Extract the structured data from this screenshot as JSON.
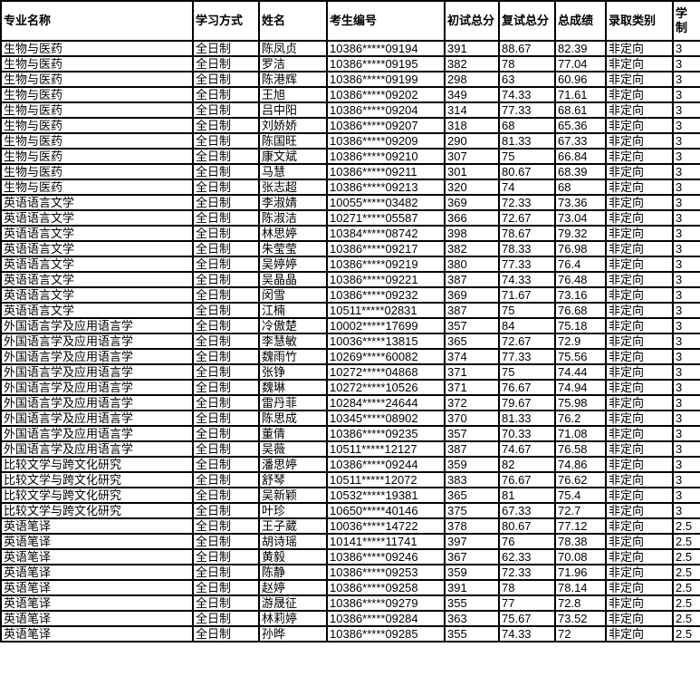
{
  "headers": [
    "专业名称",
    "学习方式",
    "姓名",
    "考生编号",
    "初试总分",
    "复试总分",
    "总成绩",
    "录取类别",
    "学制"
  ],
  "rows": [
    [
      "生物与医药",
      "全日制",
      "陈凤贞",
      "10386*****09194",
      "391",
      "88.67",
      "82.39",
      "非定向",
      "3"
    ],
    [
      "生物与医药",
      "全日制",
      "罗洁",
      "10386*****09195",
      "382",
      "78",
      "77.04",
      "非定向",
      "3"
    ],
    [
      "生物与医药",
      "全日制",
      "陈港辉",
      "10386*****09199",
      "298",
      "63",
      "60.96",
      "非定向",
      "3"
    ],
    [
      "生物与医药",
      "全日制",
      "王旭",
      "10386*****09202",
      "349",
      "74.33",
      "71.61",
      "非定向",
      "3"
    ],
    [
      "生物与医药",
      "全日制",
      "吕中阳",
      "10386*****09204",
      "314",
      "77.33",
      "68.61",
      "非定向",
      "3"
    ],
    [
      "生物与医药",
      "全日制",
      "刘娇娇",
      "10386*****09207",
      "318",
      "68",
      "65.36",
      "非定向",
      "3"
    ],
    [
      "生物与医药",
      "全日制",
      "陈国旺",
      "10386*****09209",
      "290",
      "81.33",
      "67.33",
      "非定向",
      "3"
    ],
    [
      "生物与医药",
      "全日制",
      "康文斌",
      "10386*****09210",
      "307",
      "75",
      "66.84",
      "非定向",
      "3"
    ],
    [
      "生物与医药",
      "全日制",
      "马慧",
      "10386*****09211",
      "301",
      "80.67",
      "68.39",
      "非定向",
      "3"
    ],
    [
      "生物与医药",
      "全日制",
      "张志超",
      "10386*****09213",
      "320",
      "74",
      "68",
      "非定向",
      "3"
    ],
    [
      "英语语言文学",
      "全日制",
      "李淑婧",
      "10055*****03482",
      "369",
      "72.33",
      "73.36",
      "非定向",
      "3"
    ],
    [
      "英语语言文学",
      "全日制",
      "陈淑洁",
      "10271*****05587",
      "366",
      "72.67",
      "73.04",
      "非定向",
      "3"
    ],
    [
      "英语语言文学",
      "全日制",
      "林思婷",
      "10384*****08742",
      "398",
      "78.67",
      "79.32",
      "非定向",
      "3"
    ],
    [
      "英语语言文学",
      "全日制",
      "朱莹莹",
      "10386*****09217",
      "382",
      "78.33",
      "76.98",
      "非定向",
      "3"
    ],
    [
      "英语语言文学",
      "全日制",
      "吴婷婷",
      "10386*****09219",
      "380",
      "77.33",
      "76.4",
      "非定向",
      "3"
    ],
    [
      "英语语言文学",
      "全日制",
      "吴晶晶",
      "10386*****09221",
      "387",
      "74.33",
      "76.48",
      "非定向",
      "3"
    ],
    [
      "英语语言文学",
      "全日制",
      "闵雪",
      "10386*****09232",
      "369",
      "71.67",
      "73.16",
      "非定向",
      "3"
    ],
    [
      "英语语言文学",
      "全日制",
      "江楠",
      "10511*****02831",
      "387",
      "75",
      "76.68",
      "非定向",
      "3"
    ],
    [
      "外国语言学及应用语言学",
      "全日制",
      "冷傲楚",
      "10002*****17699",
      "357",
      "84",
      "75.18",
      "非定向",
      "3"
    ],
    [
      "外国语言学及应用语言学",
      "全日制",
      "李慧敏",
      "10036*****13815",
      "365",
      "72.67",
      "72.9",
      "非定向",
      "3"
    ],
    [
      "外国语言学及应用语言学",
      "全日制",
      "魏雨竹",
      "10269*****60082",
      "374",
      "77.33",
      "75.56",
      "非定向",
      "3"
    ],
    [
      "外国语言学及应用语言学",
      "全日制",
      "张铮",
      "10272*****04868",
      "371",
      "75",
      "74.44",
      "非定向",
      "3"
    ],
    [
      "外国语言学及应用语言学",
      "全日制",
      "魏琳",
      "10272*****10526",
      "371",
      "76.67",
      "74.94",
      "非定向",
      "3"
    ],
    [
      "外国语言学及应用语言学",
      "全日制",
      "雷丹菲",
      "10284*****24644",
      "372",
      "79.67",
      "75.98",
      "非定向",
      "3"
    ],
    [
      "外国语言学及应用语言学",
      "全日制",
      "陈思成",
      "10345*****08902",
      "370",
      "81.33",
      "76.2",
      "非定向",
      "3"
    ],
    [
      "外国语言学及应用语言学",
      "全日制",
      "董倩",
      "10386*****09235",
      "357",
      "70.33",
      "71.08",
      "非定向",
      "3"
    ],
    [
      "外国语言学及应用语言学",
      "全日制",
      "吴薇",
      "10511*****12127",
      "387",
      "74.67",
      "76.58",
      "非定向",
      "3"
    ],
    [
      "比较文学与跨文化研究",
      "全日制",
      "潘思婷",
      "10386*****09244",
      "359",
      "82",
      "74.86",
      "非定向",
      "3"
    ],
    [
      "比较文学与跨文化研究",
      "全日制",
      "舒琴",
      "10511*****12072",
      "383",
      "76.67",
      "76.62",
      "非定向",
      "3"
    ],
    [
      "比较文学与跨文化研究",
      "全日制",
      "吴新颖",
      "10532*****19381",
      "365",
      "81",
      "75.4",
      "非定向",
      "3"
    ],
    [
      "比较文学与跨文化研究",
      "全日制",
      "叶珍",
      "10650*****40146",
      "375",
      "67.33",
      "72.7",
      "非定向",
      "3"
    ],
    [
      "英语笔译",
      "全日制",
      "王子葳",
      "10036*****14722",
      "378",
      "80.67",
      "77.12",
      "非定向",
      "2.5"
    ],
    [
      "英语笔译",
      "全日制",
      "胡诗瑶",
      "10141*****11741",
      "397",
      "76",
      "78.38",
      "非定向",
      "2.5"
    ],
    [
      "英语笔译",
      "全日制",
      "黄毅",
      "10386*****09246",
      "367",
      "62.33",
      "70.08",
      "非定向",
      "2.5"
    ],
    [
      "英语笔译",
      "全日制",
      "陈静",
      "10386*****09253",
      "359",
      "72.33",
      "71.96",
      "非定向",
      "2.5"
    ],
    [
      "英语笔译",
      "全日制",
      "赵婷",
      "10386*****09258",
      "391",
      "78",
      "78.14",
      "非定向",
      "2.5"
    ],
    [
      "英语笔译",
      "全日制",
      "游晟征",
      "10386*****09279",
      "355",
      "77",
      "72.8",
      "非定向",
      "2.5"
    ],
    [
      "英语笔译",
      "全日制",
      "林莉婷",
      "10386*****09284",
      "363",
      "75.67",
      "73.52",
      "非定向",
      "2.5"
    ],
    [
      "英语笔译",
      "全日制",
      "孙晔",
      "10386*****09285",
      "355",
      "74.33",
      "72",
      "非定向",
      "2.5"
    ]
  ]
}
